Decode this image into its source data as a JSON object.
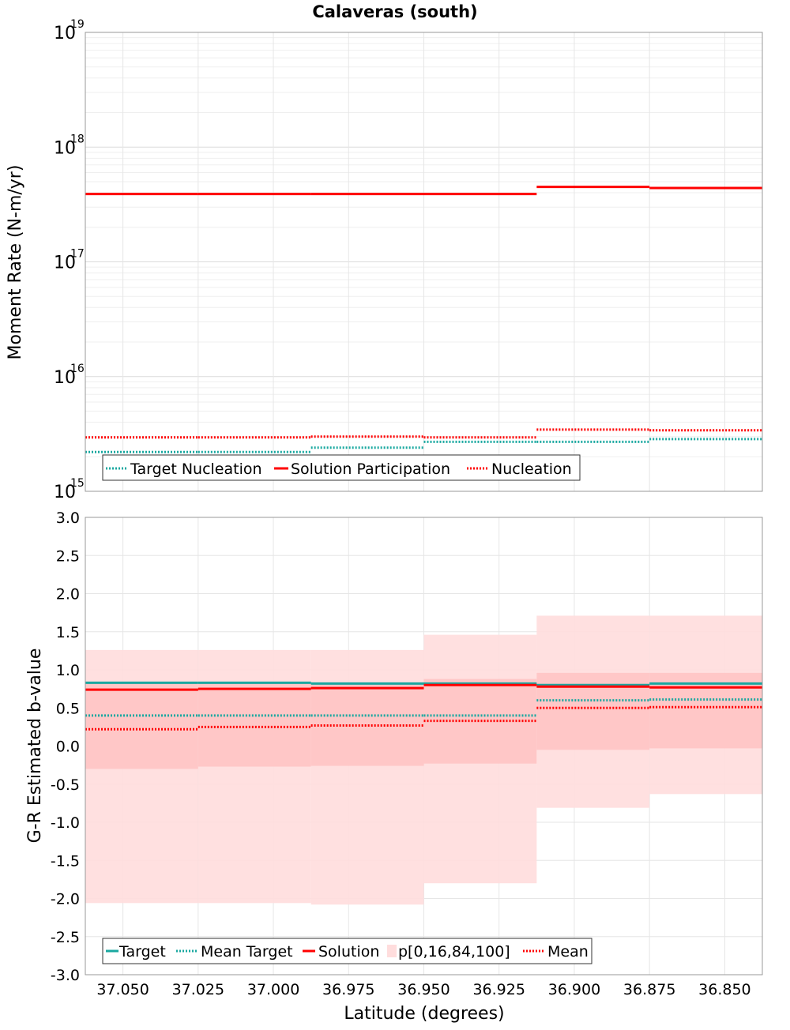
{
  "title": "Calaveras (south)",
  "xlabel": "Latitude (degrees)",
  "colors": {
    "target": "#1aa8a0",
    "mean_target": "#1aa8a0",
    "solution": "#ff0000",
    "mean": "#ff0000",
    "band_outer": "#ffdddd",
    "band_inner": "#ffc4c4"
  },
  "chart_data": [
    {
      "type": "line",
      "title": "Calaveras (south)",
      "ylabel": "Moment Rate (N-m/yr)",
      "yscale": "log",
      "ylim": [
        1000000000000000.0,
        1e+19
      ],
      "xlim": [
        37.0625,
        36.8375
      ],
      "x_inverted": true,
      "grid": true,
      "legend_position": "bottom-left",
      "y_ticks": [
        {
          "base": "10",
          "exp": "15"
        },
        {
          "base": "10",
          "exp": "16"
        },
        {
          "base": "10",
          "exp": "17"
        },
        {
          "base": "10",
          "exp": "18"
        },
        {
          "base": "10",
          "exp": "19"
        }
      ],
      "x_bins": [
        [
          37.0625,
          37.025
        ],
        [
          37.025,
          36.9875
        ],
        [
          36.9875,
          36.95
        ],
        [
          36.95,
          36.9125
        ],
        [
          36.9125,
          36.875
        ],
        [
          36.875,
          36.8375
        ]
      ],
      "series": [
        {
          "name": "Target Nucleation",
          "style": "dotted",
          "color": "#1aa8a0",
          "values": [
            2200000000000000.0,
            2200000000000000.0,
            2400000000000000.0,
            2700000000000000.0,
            2700000000000000.0,
            2850000000000000.0
          ]
        },
        {
          "name": "Solution Participation",
          "style": "solid",
          "color": "#ff0000",
          "values": [
            3.9e+17,
            3.9e+17,
            3.9e+17,
            3.9e+17,
            4.5e+17,
            4.4e+17
          ]
        },
        {
          "name": "Nucleation",
          "style": "dotted",
          "color": "#ff0000",
          "values": [
            2950000000000000.0,
            2950000000000000.0,
            3000000000000000.0,
            2950000000000000.0,
            3450000000000000.0,
            3400000000000000.0
          ]
        }
      ]
    },
    {
      "type": "line",
      "ylabel": "G-R Estimated b-value",
      "ylim": [
        -3.0,
        3.0
      ],
      "xlim": [
        37.0625,
        36.8375
      ],
      "x_inverted": true,
      "grid": true,
      "legend_position": "bottom-left",
      "y_ticks": [
        "-3.0",
        "-2.5",
        "-2.0",
        "-1.5",
        "-1.0",
        "-0.5",
        "0.0",
        "0.5",
        "1.0",
        "1.5",
        "2.0",
        "2.5",
        "3.0"
      ],
      "x_ticks": [
        "37.050",
        "37.025",
        "37.000",
        "36.975",
        "36.950",
        "36.925",
        "36.900",
        "36.875",
        "36.850"
      ],
      "x_bins": [
        [
          37.0625,
          37.025
        ],
        [
          37.025,
          36.9875
        ],
        [
          36.9875,
          36.95
        ],
        [
          36.95,
          36.9125
        ],
        [
          36.9125,
          36.875
        ],
        [
          36.875,
          36.8375
        ]
      ],
      "band_name": "p[0,16,84,100]",
      "bands": {
        "p0": [
          -2.06,
          -2.06,
          -2.08,
          -1.8,
          -0.81,
          -0.63
        ],
        "p16": [
          -0.3,
          -0.27,
          -0.26,
          -0.23,
          -0.05,
          -0.03
        ],
        "p84": [
          0.84,
          0.84,
          0.82,
          0.88,
          0.96,
          0.96
        ],
        "p100": [
          1.26,
          1.26,
          1.26,
          1.46,
          1.71,
          1.71
        ]
      },
      "series": [
        {
          "name": "Target",
          "style": "solid",
          "color": "#1aa8a0",
          "values": [
            0.83,
            0.83,
            0.82,
            0.82,
            0.8,
            0.82
          ]
        },
        {
          "name": "Mean Target",
          "style": "dotted",
          "color": "#1aa8a0",
          "values": [
            0.4,
            0.4,
            0.4,
            0.4,
            0.6,
            0.61
          ]
        },
        {
          "name": "Solution",
          "style": "solid",
          "color": "#ff0000",
          "values": [
            0.74,
            0.75,
            0.76,
            0.8,
            0.78,
            0.77
          ]
        },
        {
          "name": "Mean",
          "style": "dotted",
          "color": "#ff0000",
          "values": [
            0.22,
            0.25,
            0.27,
            0.33,
            0.5,
            0.51
          ]
        }
      ],
      "legend_order": [
        "Target",
        "Mean Target",
        "Solution",
        "p[0,16,84,100]",
        "Mean"
      ]
    }
  ]
}
